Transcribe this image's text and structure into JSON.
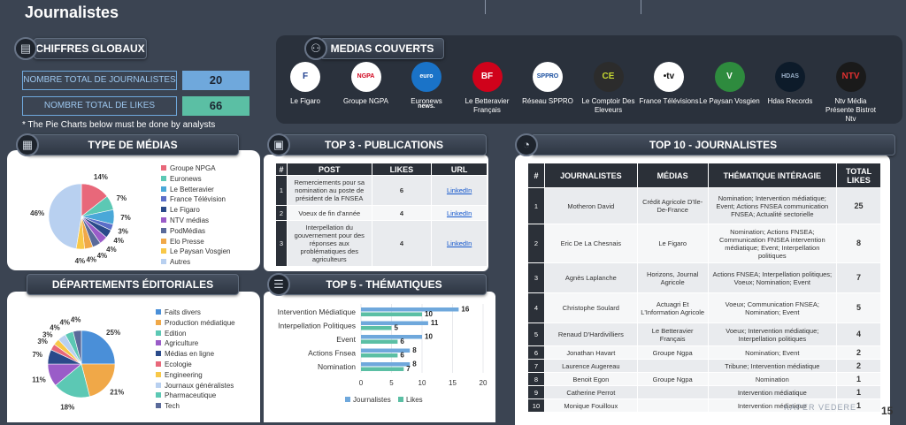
{
  "page": {
    "title": "Journalistes",
    "page_number": "15",
    "brand": "KAPER VEDERE"
  },
  "sections": {
    "chiffres": "CHIFFRES GLOBAUX",
    "medias": "MEDIAS COUVERTS",
    "type_medias": "TYPE DE MÉDIAS",
    "departements": "DÉPARTEMENTS ÉDITORIALES",
    "top3": "TOP 3 - PUBLICATIONS",
    "top5": "TOP 5 - THÉMATIQUES",
    "top10": "TOP 10 - JOURNALISTES"
  },
  "kpis": [
    {
      "label": "NOMBRE TOTAL DE JOURNALISTES",
      "value": "20",
      "color": "#6fa8dc"
    },
    {
      "label": "NOMBRE TOTAL DE LIKES",
      "value": "66",
      "color": "#5bbfa4"
    }
  ],
  "note": "* The Pie Charts below must be done by analysts",
  "medias": [
    {
      "name": "Le Figaro",
      "logo": "F",
      "bg": "#ffffff",
      "fg": "#1f3f8f"
    },
    {
      "name": "Groupe NGPA",
      "logo": "NGPA",
      "bg": "#ffffff",
      "fg": "#d0021b"
    },
    {
      "name": "Euronews",
      "logo": "euro news.",
      "bg": "#1a73c8",
      "fg": "#ffffff"
    },
    {
      "name": "Le Betteravier Français",
      "logo": "BF",
      "bg": "#d0021b",
      "fg": "#ffffff"
    },
    {
      "name": "Réseau SPPRO",
      "logo": "SPPRO",
      "bg": "#ffffff",
      "fg": "#1a4fa0"
    },
    {
      "name": "Le Comptoir Des Eleveurs",
      "logo": "CE",
      "bg": "#2c2c2c",
      "fg": "#c6d832"
    },
    {
      "name": "France Télévisions",
      "logo": "•tv",
      "bg": "#ffffff",
      "fg": "#111111"
    },
    {
      "name": "Le Paysan Vosgien",
      "logo": "V",
      "bg": "#2e8b3e",
      "fg": "#ffffff"
    },
    {
      "name": "Hdas Records",
      "logo": "HDAS",
      "bg": "#0d1b2a",
      "fg": "#9ab0c8"
    },
    {
      "name": "Ntv Média Présente Bistrot Ntv",
      "logo": "NTV",
      "bg": "#1a1a1a",
      "fg": "#e03030"
    }
  ],
  "chart_data": [
    {
      "type": "pie",
      "title": "TYPE DE MÉDIAS",
      "labels": [
        "Groupe NPGA",
        "Euronews",
        "Le Betteravier",
        "France Télévision",
        "Le Figaro",
        "NTV médias",
        "PodMédias",
        "Elo Presse",
        "Le Paysan Vosgien",
        "Autres"
      ],
      "values": [
        14,
        7,
        7,
        3,
        4,
        4,
        4,
        4,
        4,
        46
      ],
      "display_labels": [
        "14%",
        "7%",
        "7%",
        "3%",
        "4%",
        "4%",
        "4%",
        "4%",
        "4%",
        "46%"
      ],
      "colors": [
        "#e8687a",
        "#5cc8b4",
        "#4aa8d8",
        "#5b6ec8",
        "#2a4a8a",
        "#9a5cc8",
        "#5a6a9a",
        "#f0a848",
        "#f8c848",
        "#b8d0f0"
      ],
      "legend": "right"
    },
    {
      "type": "pie",
      "title": "DÉPARTEMENTS ÉDITORIALES",
      "labels": [
        "Faits divers",
        "Production médiatique",
        "Edition",
        "Agriculture",
        "Médias en ligne",
        "Ecologie",
        "Engineering",
        "Journaux généralistes",
        "Pharmaceutique",
        "Tech"
      ],
      "values": [
        25,
        21,
        18,
        11,
        7,
        3,
        3,
        4,
        4,
        4
      ],
      "display_labels": [
        "25%",
        "21%",
        "18%",
        "11%",
        "7%",
        "3%",
        "3%",
        "4%",
        "4%",
        "4%"
      ],
      "colors": [
        "#4a8fd8",
        "#f0a848",
        "#5cc8b4",
        "#9a5cc8",
        "#2a4a8a",
        "#e8687a",
        "#f8c848",
        "#b8d0f0",
        "#5cc8b4",
        "#5a6a9a"
      ],
      "legend": "right"
    },
    {
      "type": "bar",
      "orientation": "horizontal",
      "title": "TOP 5 - THÉMATIQUES",
      "categories": [
        "Intervention Médiatique",
        "Interpellation Politiques",
        "Event",
        "Actions Fnsea",
        "Nomination"
      ],
      "series": [
        {
          "name": "Journalistes",
          "values": [
            16,
            11,
            10,
            8,
            8
          ],
          "color": "#6fa8dc"
        },
        {
          "name": "Likes",
          "values": [
            10,
            5,
            6,
            6,
            7
          ],
          "color": "#5bbfa4"
        }
      ],
      "xlim": [
        0,
        20
      ],
      "xticks": [
        "0",
        "5",
        "10",
        "15",
        "20"
      ],
      "legend": "bottom"
    }
  ],
  "top3": {
    "headers": [
      "#",
      "POST",
      "LIKES",
      "URL"
    ],
    "rows": [
      {
        "idx": "1",
        "post": "Remerciements pour sa nomination au poste de président de la FNSEA",
        "likes": "6",
        "url": "LinkedIn"
      },
      {
        "idx": "2",
        "post": "Voeux de fin d'année",
        "likes": "4",
        "url": "LinkedIn"
      },
      {
        "idx": "3",
        "post": "Interpellation du gouvernement pour des réponses aux problématiques des agriculteurs",
        "likes": "4",
        "url": "LinkedIn"
      }
    ]
  },
  "top10": {
    "headers": [
      "#",
      "JOURNALISTES",
      "MÉDIAS",
      "THÉMATIQUE INTÉRAGIE",
      "TOTAL LIKES"
    ],
    "rows": [
      {
        "idx": "1",
        "name": "Motheron David",
        "media": "Crédit Agricole D'Ile-De-France",
        "theme": "Nomination; Intervention médiatique; Event; Actions FNSEA communication FNSEA; Actualité sectorielle",
        "likes": "25"
      },
      {
        "idx": "2",
        "name": "Eric De La Chesnais",
        "media": "Le Figaro",
        "theme": "Nomination; Actions FNSEA; Communication FNSEA intervention médiatique; Event; Interpellation politiques",
        "likes": "8"
      },
      {
        "idx": "3",
        "name": "Agnès Laplanche",
        "media": "Horizons, Journal Agricole",
        "theme": "Actions FNSEA; Interpellation politiques; Voeux; Nomination; Event",
        "likes": "7"
      },
      {
        "idx": "4",
        "name": "Christophe Soulard",
        "media": "Actuagri Et L'Information Agricole",
        "theme": "Voeux; Communication FNSEA; Nomination; Event",
        "likes": "5"
      },
      {
        "idx": "5",
        "name": "Renaud D'Hardivilliers",
        "media": "Le Betteravier Français",
        "theme": "Voeux; Intervention médiatique; Interpellation politiques",
        "likes": "4"
      },
      {
        "idx": "6",
        "name": "Jonathan Havart",
        "media": "Groupe Ngpa",
        "theme": "Nomination; Event",
        "likes": "2"
      },
      {
        "idx": "7",
        "name": "Laurence Augereau",
        "media": "",
        "theme": "Tribune; Intervention médiatique",
        "likes": "2"
      },
      {
        "idx": "8",
        "name": "Benoit Egon",
        "media": "Groupe Ngpa",
        "theme": "Nomination",
        "likes": "1"
      },
      {
        "idx": "9",
        "name": "Catherine Perrot",
        "media": "",
        "theme": "Intervention médiatique",
        "likes": "1"
      },
      {
        "idx": "10",
        "name": "Monique Fouilloux",
        "media": "",
        "theme": "Intervention médiatique",
        "likes": "1"
      }
    ]
  }
}
